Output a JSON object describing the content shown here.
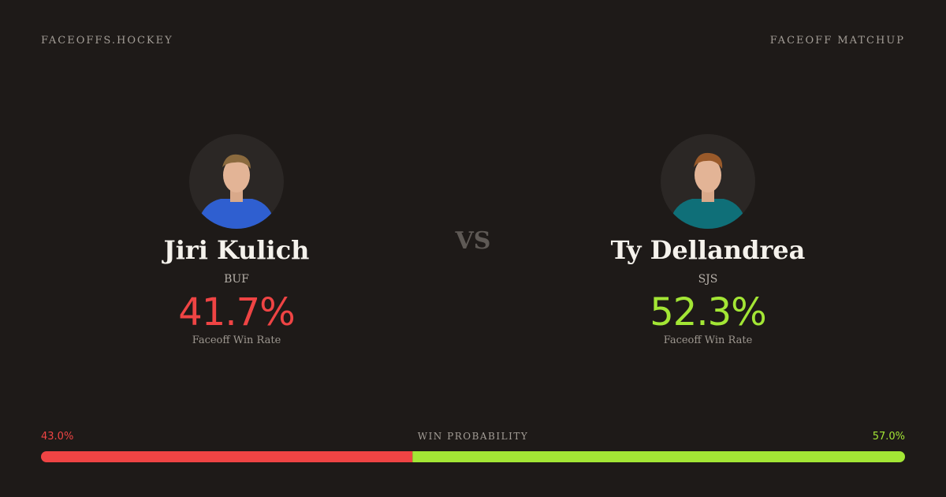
{
  "header": {
    "brand": "FACEOFFS.HOCKEY",
    "section": "FACEOFF MATCHUP"
  },
  "players": [
    {
      "name": "Jiri Kulich",
      "team": "BUF",
      "win_rate": "41.7%",
      "win_rate_label": "Faceoff Win Rate",
      "color": "#ef4444",
      "jersey": "#2f5fd0"
    },
    {
      "name": "Ty Dellandrea",
      "team": "SJS",
      "win_rate": "52.3%",
      "win_rate_label": "Faceoff Win Rate",
      "color": "#a3e635",
      "jersey": "#0f6f78"
    }
  ],
  "versus": "VS",
  "probability": {
    "title": "WIN PROBABILITY",
    "left": {
      "value": 43.0,
      "label": "43.0%"
    },
    "right": {
      "value": 57.0,
      "label": "57.0%"
    }
  }
}
